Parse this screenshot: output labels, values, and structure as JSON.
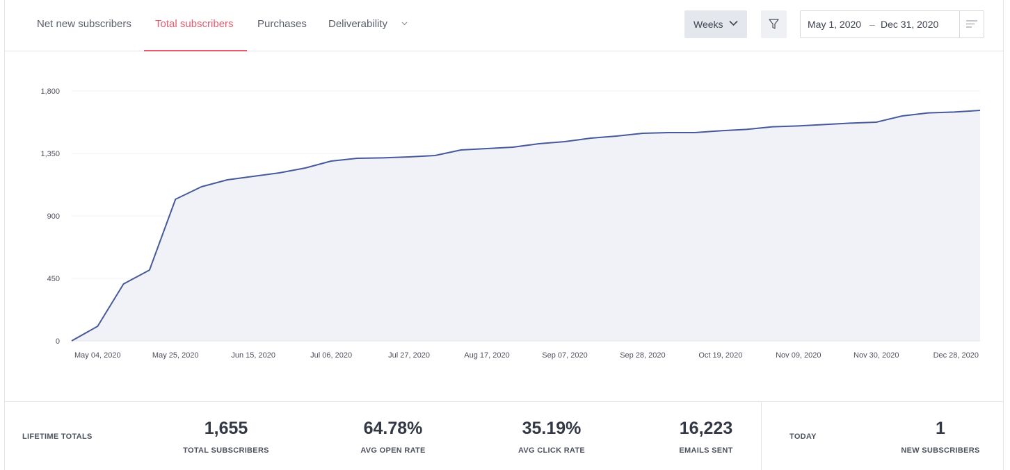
{
  "tabs": [
    {
      "label": "Net new subscribers",
      "active": false
    },
    {
      "label": "Total subscribers",
      "active": true
    },
    {
      "label": "Purchases",
      "active": false
    },
    {
      "label": "Deliverability",
      "active": false
    }
  ],
  "controls": {
    "interval": "Weeks",
    "date_start": "May 1, 2020",
    "date_sep": "–",
    "date_end": "Dec 31, 2020"
  },
  "colors": {
    "accent": "#e8596b",
    "line": "#46599a",
    "area": "#f1f2f7"
  },
  "icons": {
    "interval_chevron": "chevron-down-icon",
    "deliverability_chevron": "chevron-down-icon",
    "filter": "filter-icon",
    "date_menu": "menu-lines-icon"
  },
  "chart_data": {
    "type": "area",
    "title": "",
    "xlabel": "",
    "ylabel": "",
    "ylim": [
      0,
      1800
    ],
    "yticks": [
      0,
      450,
      900,
      1350,
      1800
    ],
    "ytick_labels": [
      "0",
      "450",
      "900",
      "1,350",
      "1,800"
    ],
    "xtick_labels": [
      "May 04, 2020",
      "May 25, 2020",
      "Jun 15, 2020",
      "Jul 06, 2020",
      "Jul 27, 2020",
      "Aug 17, 2020",
      "Sep 07, 2020",
      "Sep 28, 2020",
      "Oct 19, 2020",
      "Nov 09, 2020",
      "Nov 30, 2020",
      "Dec 28, 2020"
    ],
    "grid": true,
    "series": [
      {
        "x": [
          "Apr 27, 2020",
          "May 04, 2020",
          "May 11, 2020",
          "May 18, 2020",
          "May 25, 2020",
          "Jun 01, 2020",
          "Jun 08, 2020",
          "Jun 15, 2020",
          "Jun 22, 2020",
          "Jun 29, 2020",
          "Jul 06, 2020",
          "Jul 13, 2020",
          "Jul 20, 2020",
          "Jul 27, 2020",
          "Aug 03, 2020",
          "Aug 10, 2020",
          "Aug 17, 2020",
          "Aug 24, 2020",
          "Aug 31, 2020",
          "Sep 07, 2020",
          "Sep 14, 2020",
          "Sep 21, 2020",
          "Sep 28, 2020",
          "Oct 05, 2020",
          "Oct 12, 2020",
          "Oct 19, 2020",
          "Oct 26, 2020",
          "Nov 02, 2020",
          "Nov 09, 2020",
          "Nov 16, 2020",
          "Nov 23, 2020",
          "Nov 30, 2020",
          "Dec 07, 2020",
          "Dec 14, 2020",
          "Dec 21, 2020",
          "Dec 28, 2020"
        ],
        "values": [
          0,
          105,
          410,
          510,
          1020,
          1110,
          1160,
          1185,
          1210,
          1245,
          1295,
          1315,
          1318,
          1325,
          1335,
          1375,
          1385,
          1395,
          1420,
          1435,
          1460,
          1475,
          1495,
          1500,
          1500,
          1513,
          1523,
          1542,
          1548,
          1558,
          1568,
          1575,
          1620,
          1642,
          1648,
          1660
        ]
      }
    ]
  },
  "totals": {
    "label": "LIFETIME TOTALS",
    "stats": [
      {
        "value": "1,655",
        "label": "TOTAL SUBSCRIBERS"
      },
      {
        "value": "64.78%",
        "label": "AVG OPEN RATE"
      },
      {
        "value": "35.19%",
        "label": "AVG CLICK RATE"
      },
      {
        "value": "16,223",
        "label": "EMAILS SENT"
      }
    ],
    "today_label": "TODAY",
    "today": {
      "value": "1",
      "label": "NEW SUBSCRIBERS"
    }
  }
}
